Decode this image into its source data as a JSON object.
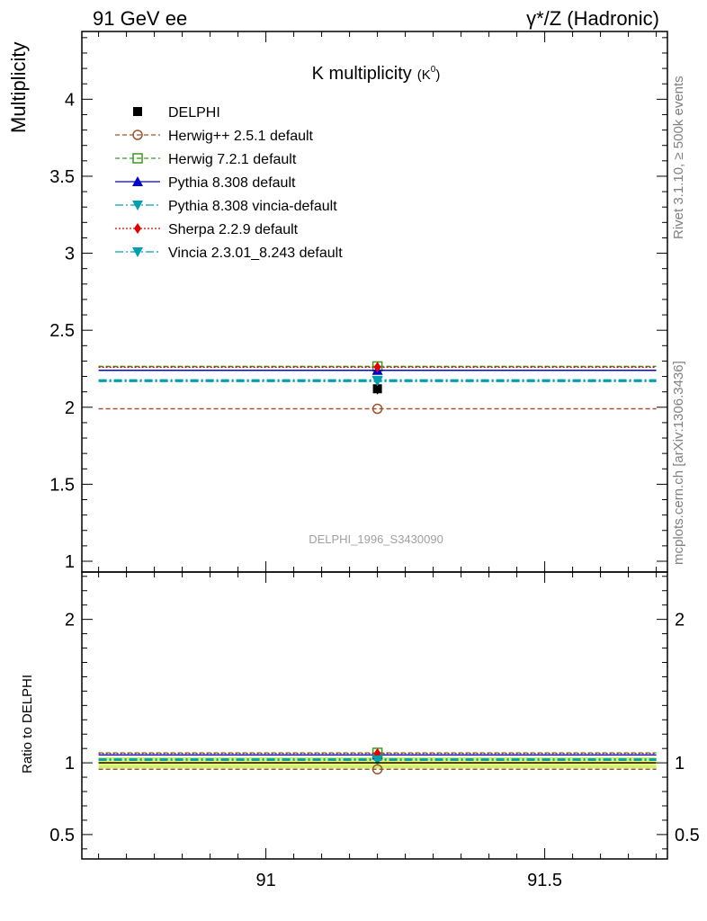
{
  "header": {
    "left": "91 GeV ee",
    "right": "γ*/Z (Hadronic)"
  },
  "side_labels": {
    "rivet": "Rivet 3.1.10, ≥ 500k events",
    "mcplots": "mcplots.cern.ch [arXiv:1306.3436]"
  },
  "watermark": "DELPHI_1996_S3430090",
  "chart_data": [
    {
      "type": "scatter",
      "title": "K multiplicity",
      "title_suffix": "(K",
      "title_sup": "0",
      "title_close": ")",
      "ylabel": "Multiplicity",
      "xlim": [
        90.67,
        91.72
      ],
      "ylim": [
        0.93,
        4.44
      ],
      "yticks": [
        1,
        1.5,
        2,
        2.5,
        3,
        3.5,
        4
      ],
      "ytick_labels": [
        "1",
        "1.5",
        "2",
        "2.5",
        "3",
        "3.5",
        "4"
      ],
      "x_point": 91.2,
      "x_range": [
        90.7,
        91.7
      ],
      "grid": false,
      "legend_position": "top-left",
      "series": [
        {
          "name": "DELPHI",
          "y": 2.12,
          "color": "#000000",
          "marker": "square",
          "line": "none"
        },
        {
          "name": "Herwig++ 2.5.1 default",
          "y": 1.99,
          "color": "#a0522d",
          "marker": "open-circle",
          "line": "dashed"
        },
        {
          "name": "Herwig 7.2.1 default",
          "y": 2.265,
          "color": "#3c9a1e",
          "marker": "open-square",
          "line": "dashed"
        },
        {
          "name": "Pythia 8.308 default",
          "y": 2.24,
          "color": "#0000cc",
          "marker": "triangle-up",
          "line": "solid"
        },
        {
          "name": "Pythia 8.308 vincia-default",
          "y": 2.175,
          "color": "#00a0b0",
          "marker": "triangle-down",
          "line": "dashdot"
        },
        {
          "name": "Sherpa 2.2.9 default",
          "y": 2.26,
          "color": "#e00000",
          "marker": "diamond",
          "line": "dotted"
        },
        {
          "name": "Vincia 2.3.01_8.243 default",
          "y": 2.17,
          "color": "#00a0b0",
          "marker": "triangle-down",
          "line": "dashdot"
        }
      ]
    },
    {
      "type": "scatter",
      "ylabel": "Ratio to DELPHI",
      "ylim": [
        0.33,
        2.33
      ],
      "yticks": [
        0.5,
        1,
        2
      ],
      "ytick_labels": [
        "0.5",
        "1",
        "2"
      ],
      "xticks": [
        91,
        91.5
      ],
      "xtick_labels": [
        "91",
        "91.5"
      ],
      "reference_band": {
        "inner": [
          0.985,
          1.015
        ],
        "outer": [
          0.96,
          1.04
        ],
        "inner_color": "#ffff55",
        "outer_color": "#ccf07a"
      },
      "series": [
        {
          "name": "Herwig++ 2.5.1 default",
          "y": 0.955
        },
        {
          "name": "Herwig 7.2.1 default",
          "y": 1.07
        },
        {
          "name": "Pythia 8.308 default",
          "y": 1.055
        },
        {
          "name": "Pythia 8.308 vincia-default",
          "y": 1.025
        },
        {
          "name": "Sherpa 2.2.9 default",
          "y": 1.065
        },
        {
          "name": "Vincia 2.3.01_8.243 default",
          "y": 1.02
        }
      ]
    }
  ]
}
